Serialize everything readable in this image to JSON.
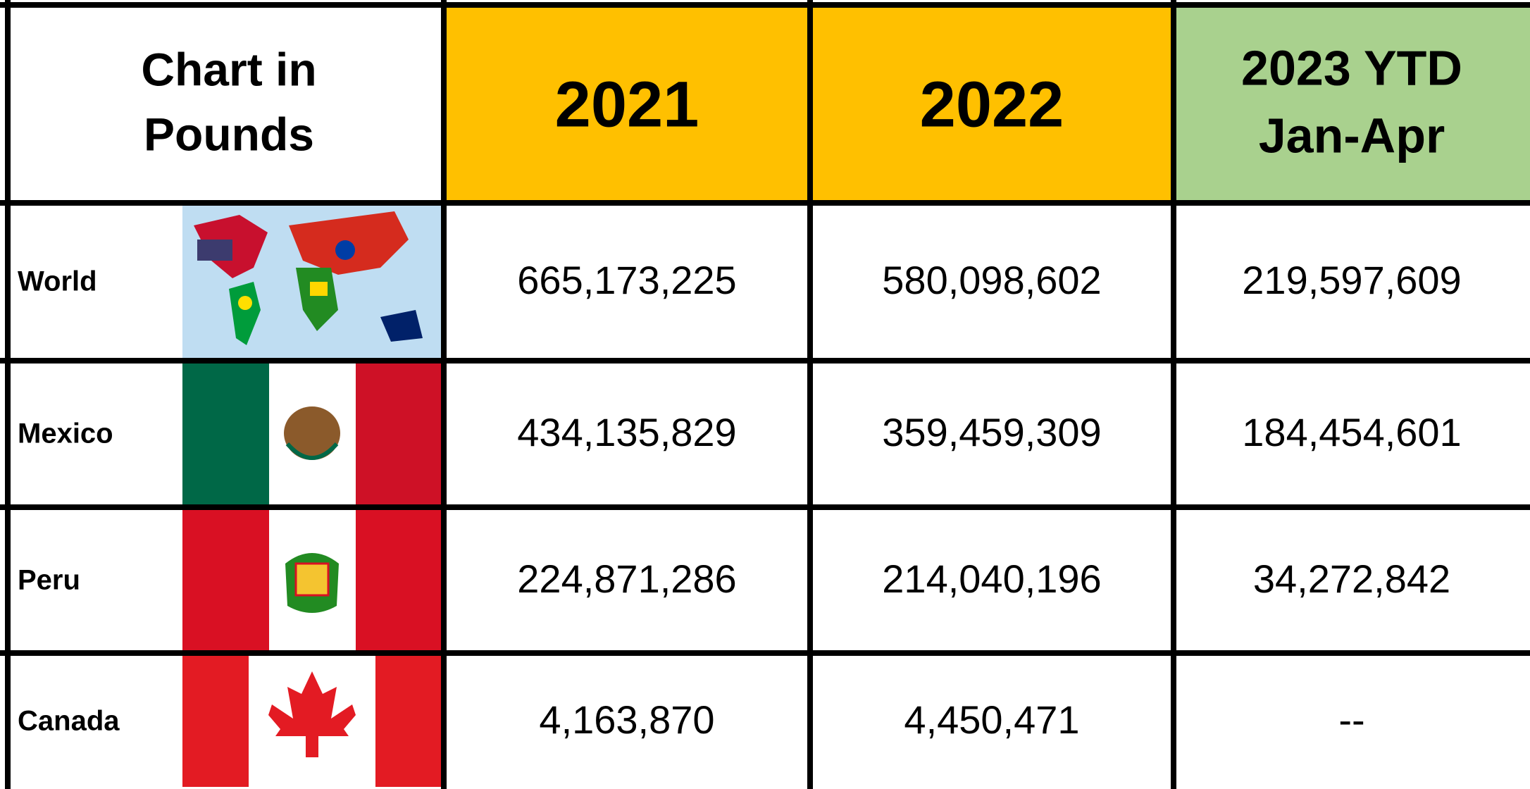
{
  "header": {
    "corner": [
      "Chart in",
      "Pounds"
    ],
    "columns": [
      [
        "2021"
      ],
      [
        "2022"
      ],
      [
        "2023 YTD",
        "Jan-Apr"
      ]
    ]
  },
  "rows": [
    {
      "label": "World",
      "values": [
        "665,173,225",
        "580,098,602",
        "219,597,609"
      ]
    },
    {
      "label": "Mexico",
      "values": [
        "434,135,829",
        "359,459,309",
        "184,454,601"
      ]
    },
    {
      "label": "Peru",
      "values": [
        "224,871,286",
        "214,040,196",
        "34,272,842"
      ]
    },
    {
      "label": "Canada",
      "values": [
        "4,163,870",
        "4,450,471",
        "--"
      ]
    }
  ]
}
